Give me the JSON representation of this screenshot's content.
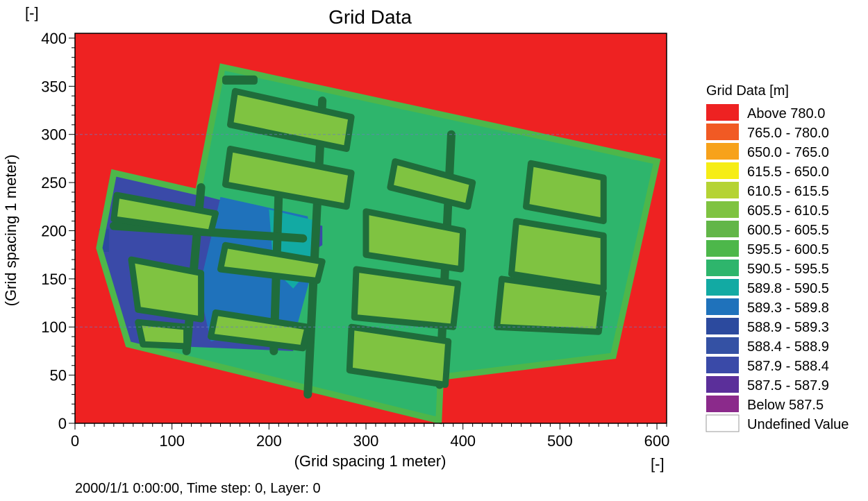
{
  "chart_data": {
    "type": "heatmap",
    "title": "Grid Data",
    "xlabel": "(Grid spacing 1 meter)",
    "ylabel": "(Grid spacing 1 meter)",
    "x_unit": "[-]",
    "y_unit": "[-]",
    "xlim": [
      0,
      610
    ],
    "ylim": [
      0,
      405
    ],
    "x_ticks": [
      "0",
      "100",
      "200",
      "300",
      "400",
      "500",
      "600"
    ],
    "y_ticks": [
      "0",
      "50",
      "100",
      "150",
      "200",
      "250",
      "300",
      "350",
      "400"
    ],
    "gridlines_y": [
      100,
      300
    ],
    "background_class": "Above  780.0",
    "legend": {
      "title": "Grid Data [m]",
      "position": "right",
      "entries": [
        {
          "label": "Above  780.0",
          "color": "#ee2222"
        },
        {
          "label": "765.0 - 780.0",
          "color": "#f15a24"
        },
        {
          "label": "650.0 - 765.0",
          "color": "#f7a21b"
        },
        {
          "label": "615.5 - 650.0",
          "color": "#f6ed16"
        },
        {
          "label": "610.5 - 615.5",
          "color": "#b5d334"
        },
        {
          "label": "605.5 - 610.5",
          "color": "#7fc341"
        },
        {
          "label": "600.5 - 605.5",
          "color": "#62b648"
        },
        {
          "label": "595.5 - 600.5",
          "color": "#4db74a"
        },
        {
          "label": "590.5 - 595.5",
          "color": "#2eb56c"
        },
        {
          "label": "589.8 - 590.5",
          "color": "#12aaa3"
        },
        {
          "label": "589.3 - 589.8",
          "color": "#1f72bb"
        },
        {
          "label": "588.9 - 589.3",
          "color": "#2c4a9e"
        },
        {
          "label": "588.4 - 588.9",
          "color": "#3451a4"
        },
        {
          "label": "587.9 - 588.4",
          "color": "#3a4aa8"
        },
        {
          "label": "587.5 - 587.9",
          "color": "#5b2f9a"
        },
        {
          "label": "Below  587.5",
          "color": "#8b2a8b"
        },
        {
          "label": "Undefined Value",
          "color": "#ffffff"
        }
      ]
    },
    "regions": [
      {
        "name": "main-pad",
        "class": "590.5 - 595.5",
        "polygon": [
          [
            152,
            370
          ],
          [
            600,
            272
          ],
          [
            555,
            70
          ],
          [
            377,
            48
          ],
          [
            375,
            3
          ],
          [
            55,
            82
          ],
          [
            25,
            182
          ],
          [
            40,
            260
          ],
          [
            127,
            240
          ]
        ]
      },
      {
        "name": "west-low-area",
        "class": "587.9 - 588.4",
        "polygon": [
          [
            40,
            260
          ],
          [
            255,
            205
          ],
          [
            255,
            185
          ],
          [
            215,
            160
          ],
          [
            225,
            75
          ],
          [
            55,
            82
          ],
          [
            25,
            182
          ]
        ]
      },
      {
        "name": "west-basin",
        "class": "589.3 - 589.8",
        "polygon": [
          [
            150,
            235
          ],
          [
            240,
            215
          ],
          [
            245,
            160
          ],
          [
            230,
            105
          ],
          [
            140,
            85
          ],
          [
            128,
            140
          ]
        ]
      },
      {
        "name": "west-shallow",
        "class": "589.8 - 590.5",
        "polygon": [
          [
            200,
            222
          ],
          [
            250,
            210
          ],
          [
            250,
            170
          ],
          [
            225,
            140
          ],
          [
            205,
            160
          ]
        ]
      },
      {
        "name": "road-west-edge",
        "class": "588.9 - 589.3",
        "polygon": [
          [
            25,
            178
          ],
          [
            35,
            178
          ],
          [
            35,
            202
          ],
          [
            25,
            202
          ]
        ]
      }
    ],
    "blocks": [
      {
        "class": "600.5 - 605.5",
        "polygon": [
          [
            155,
            358
          ],
          [
            185,
            358
          ],
          [
            185,
            355
          ],
          [
            155,
            355
          ]
        ]
      },
      {
        "class": "605.5 - 610.5",
        "polygon": [
          [
            165,
            345
          ],
          [
            285,
            318
          ],
          [
            280,
            285
          ],
          [
            160,
            310
          ]
        ]
      },
      {
        "class": "605.5 - 610.5",
        "polygon": [
          [
            160,
            285
          ],
          [
            285,
            260
          ],
          [
            280,
            225
          ],
          [
            155,
            248
          ]
        ]
      },
      {
        "class": "605.5 - 610.5",
        "polygon": [
          [
            43,
            237
          ],
          [
            145,
            218
          ],
          [
            140,
            198
          ],
          [
            40,
            212
          ]
        ]
      },
      {
        "class": "605.5 - 610.5",
        "polygon": [
          [
            58,
            170
          ],
          [
            130,
            156
          ],
          [
            130,
            108
          ],
          [
            65,
            118
          ]
        ]
      },
      {
        "class": "605.5 - 610.5",
        "polygon": [
          [
            65,
            105
          ],
          [
            115,
            100
          ],
          [
            115,
            80
          ],
          [
            70,
            82
          ]
        ]
      },
      {
        "class": "605.5 - 610.5",
        "polygon": [
          [
            155,
            185
          ],
          [
            255,
            168
          ],
          [
            250,
            148
          ],
          [
            150,
            160
          ]
        ]
      },
      {
        "class": "605.5 - 610.5",
        "polygon": [
          [
            145,
            115
          ],
          [
            240,
            100
          ],
          [
            235,
            78
          ],
          [
            140,
            90
          ]
        ]
      },
      {
        "class": "605.5 - 610.5",
        "polygon": [
          [
            330,
            272
          ],
          [
            410,
            250
          ],
          [
            405,
            225
          ],
          [
            325,
            245
          ]
        ]
      },
      {
        "class": "605.5 - 610.5",
        "polygon": [
          [
            300,
            220
          ],
          [
            400,
            200
          ],
          [
            398,
            160
          ],
          [
            300,
            175
          ]
        ]
      },
      {
        "class": "605.5 - 610.5",
        "polygon": [
          [
            290,
            160
          ],
          [
            395,
            145
          ],
          [
            390,
            100
          ],
          [
            288,
            110
          ]
        ]
      },
      {
        "class": "605.5 - 610.5",
        "polygon": [
          [
            285,
            100
          ],
          [
            385,
            85
          ],
          [
            382,
            40
          ],
          [
            283,
            55
          ]
        ]
      },
      {
        "class": "605.5 - 610.5",
        "polygon": [
          [
            470,
            270
          ],
          [
            545,
            255
          ],
          [
            545,
            210
          ],
          [
            465,
            225
          ]
        ]
      },
      {
        "class": "605.5 - 610.5",
        "polygon": [
          [
            455,
            210
          ],
          [
            545,
            195
          ],
          [
            545,
            140
          ],
          [
            450,
            155
          ]
        ]
      },
      {
        "class": "605.5 - 610.5",
        "polygon": [
          [
            440,
            150
          ],
          [
            545,
            135
          ],
          [
            540,
            95
          ],
          [
            435,
            100
          ]
        ]
      }
    ],
    "roads": [
      {
        "class": "595.5 - 600.5",
        "points": [
          [
            255,
            335
          ],
          [
            240,
            30
          ]
        ]
      },
      {
        "class": "595.5 - 600.5",
        "points": [
          [
            388,
            300
          ],
          [
            376,
            40
          ]
        ]
      },
      {
        "class": "595.5 - 600.5",
        "points": [
          [
            130,
            245
          ],
          [
            115,
            75
          ]
        ]
      },
      {
        "class": "595.5 - 600.5",
        "points": [
          [
            210,
            238
          ],
          [
            205,
            75
          ]
        ]
      },
      {
        "class": "595.5 - 600.5",
        "points": [
          [
            40,
            205
          ],
          [
            235,
            192
          ]
        ]
      }
    ]
  },
  "footer": {
    "status": "2000/1/1 0:00:00, Time step: 0, Layer: 0"
  }
}
